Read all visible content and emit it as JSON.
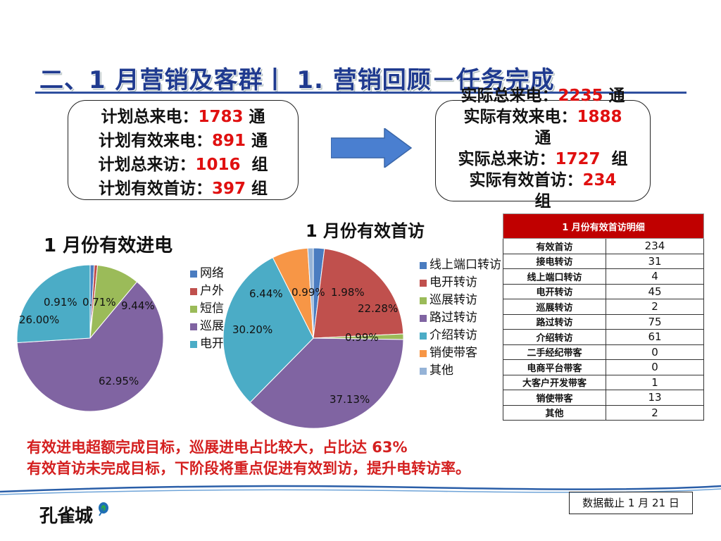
{
  "page": {
    "title": "二、1 月营销及客群丨 1. 营销回顾－任务完成",
    "date_note": "数据截止 1 月 21 日",
    "logo_text": "孔雀城"
  },
  "plan": {
    "l1_label": "计划总来电：",
    "l1_value": "1783",
    "l1_unit": "通",
    "l2_label": "计划有效来电：",
    "l2_value": "891",
    "l2_unit": "通",
    "l3_label": "计划总来访：",
    "l3_value": "1016",
    "l3_unit": "组",
    "l4_label": "计划有效首访：",
    "l4_value": "397",
    "l4_unit": "组"
  },
  "actual": {
    "l1_label": "实际总来电：",
    "l1_value": "2235",
    "l1_unit": "通",
    "l2_label": "实际有效来电：",
    "l2_value": "1888",
    "l2_unit": "通",
    "l3_label": "实际总来访：",
    "l3_value": "1727",
    "l3_unit": "组",
    "l4_label": "实际有效首访：",
    "l4_value": "234",
    "l4_unit": "组"
  },
  "chart_data": [
    {
      "type": "pie",
      "title": "1 月份有效进电",
      "categories": [
        "网络",
        "户外",
        "短信",
        "巡展",
        "电开"
      ],
      "values": [
        0.91,
        0.71,
        9.44,
        62.95,
        26.0
      ],
      "labels": [
        "0.91%",
        "0.71%",
        "9.44%",
        "62.95%",
        "26.00%"
      ],
      "colors": [
        "#4a7cc0",
        "#c0504d",
        "#9bbb59",
        "#8064a2",
        "#4bacc6"
      ],
      "legend": "right"
    },
    {
      "type": "pie",
      "title": "1 月份有效首访",
      "categories": [
        "线上端口转访",
        "电开转访",
        "巡展转访",
        "路过转访",
        "介绍转访",
        "销使带客",
        "其他"
      ],
      "values": [
        1.98,
        22.28,
        0.99,
        37.13,
        30.2,
        6.44,
        0.99
      ],
      "labels": [
        "1.98%",
        "22.28%",
        "0.99%",
        "37.13%",
        "30.20%",
        "6.44%",
        "0.99%"
      ],
      "colors": [
        "#4a7cc0",
        "#c0504d",
        "#9bbb59",
        "#8064a2",
        "#4bacc6",
        "#f79646",
        "#95b3d7"
      ],
      "legend": "right"
    }
  ],
  "detail_table": {
    "header": "1 月份有效首访明细",
    "rows": [
      {
        "k": "有效首访",
        "v": "234"
      },
      {
        "k": "接电转访",
        "v": "31"
      },
      {
        "k": "线上端口转访",
        "v": "4"
      },
      {
        "k": "电开转访",
        "v": "45"
      },
      {
        "k": "巡展转访",
        "v": "2"
      },
      {
        "k": "路过转访",
        "v": "75"
      },
      {
        "k": "介绍转访",
        "v": "61"
      },
      {
        "k": "二手经纪带客",
        "v": "0"
      },
      {
        "k": "电商平台带客",
        "v": "0"
      },
      {
        "k": "大客户开发带客",
        "v": "1"
      },
      {
        "k": "销使带客",
        "v": "13"
      },
      {
        "k": "其他",
        "v": "2"
      }
    ]
  },
  "summary": {
    "line1": "有效进电超额完成目标，巡展进电占比较大，占比达 63%",
    "line2": "有效首访未完成目标，下阶段将重点促进有效到访，提升电转访率。"
  }
}
